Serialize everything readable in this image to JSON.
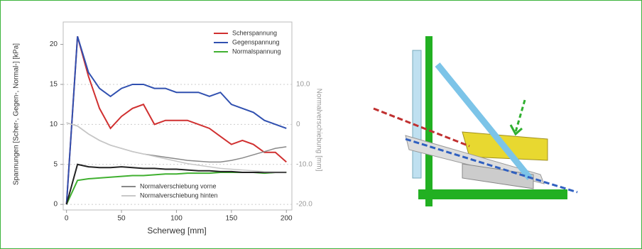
{
  "chart_data": {
    "type": "line",
    "x_label": "Scherweg [mm]",
    "y_label": "Spannungen [Scher-, Gegen-, Normal-] [kPa]",
    "y2_label": "Normalverschiebung [mm]",
    "x": [
      0,
      10,
      20,
      30,
      40,
      50,
      60,
      70,
      80,
      90,
      100,
      110,
      120,
      130,
      140,
      150,
      160,
      170,
      180,
      190,
      200
    ],
    "xlim": [
      -3,
      205
    ],
    "xticks": [
      0,
      50,
      100,
      150,
      200
    ],
    "ylim": [
      -0.7,
      22.8
    ],
    "yticks": [
      0,
      5,
      10,
      15,
      20
    ],
    "y2lim": [
      -21.4,
      25.6
    ],
    "y2ticks": [
      {
        "value": 10,
        "label": "10.0"
      },
      0,
      {
        "value": -10,
        "label": "-10.0"
      },
      {
        "value": -20,
        "label": "-20.0"
      }
    ],
    "grid": true,
    "series": [
      {
        "name": "Scherspannung",
        "color": "#d03030",
        "values": [
          0,
          21,
          16,
          12,
          9.5,
          11,
          12,
          12.5,
          10,
          10.5,
          10.5,
          10.5,
          10,
          9.5,
          8.5,
          7.5,
          8,
          7.5,
          6.5,
          6.5,
          5.3
        ]
      },
      {
        "name": "Gegenspannung",
        "color": "#3050b0",
        "values": [
          0,
          21,
          16.5,
          14.5,
          13.5,
          14.5,
          15,
          15,
          14.5,
          14.5,
          14,
          14,
          14,
          13.5,
          14,
          12.5,
          12,
          11.5,
          10.5,
          10,
          9.5
        ]
      },
      {
        "name": "Normalspannung",
        "color": "#40b030",
        "values": [
          0,
          3,
          3.2,
          3.3,
          3.4,
          3.5,
          3.6,
          3.6,
          3.7,
          3.8,
          3.8,
          3.9,
          3.9,
          3.9,
          4,
          4,
          4,
          4,
          3.9,
          4,
          4
        ]
      },
      {
        "color": "#222222",
        "values": [
          0,
          5,
          4.7,
          4.6,
          4.6,
          4.7,
          4.6,
          4.5,
          4.5,
          4.4,
          4.4,
          4.3,
          4.2,
          4.2,
          4.1,
          4.1,
          4,
          4,
          4,
          4,
          4
        ]
      },
      {
        "name": "Normalverschiebung vorne",
        "color": "#888888",
        "axis": "y2",
        "values": [
          0.4,
          -0.4,
          -2.4,
          -4,
          -5.2,
          -6,
          -6.8,
          -7.4,
          -7.8,
          -8.2,
          -8.6,
          -9,
          -9.2,
          -9.4,
          -9.4,
          -9,
          -8.4,
          -7.6,
          -6.8,
          -6,
          -5.6
        ]
      },
      {
        "name": "Normalverschiebung hinten",
        "color": "#c8c8c8",
        "axis": "y2",
        "values": [
          0.4,
          -0.4,
          -2.4,
          -4,
          -5.2,
          -6,
          -6.8,
          -7.4,
          -8,
          -8.6,
          -9.2,
          -9.8,
          -10.2,
          -10.6,
          -11,
          -11.2,
          -11.4,
          -11.6,
          -11.8,
          -11.8,
          -11.8
        ]
      }
    ]
  }
}
